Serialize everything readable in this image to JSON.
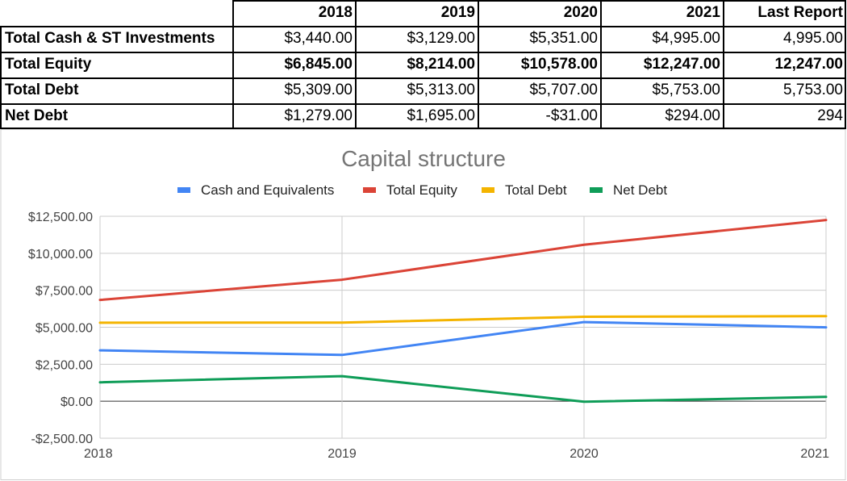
{
  "table": {
    "header": [
      "",
      "2018",
      "2019",
      "2020",
      "2021",
      "Last Report"
    ],
    "rows": [
      {
        "label": "Total Cash & ST Investments",
        "values": [
          "$3,440.00",
          "$3,129.00",
          "$5,351.00",
          "$4,995.00",
          "4,995.00"
        ],
        "bold": false
      },
      {
        "label": "Total Equity",
        "values": [
          "$6,845.00",
          "$8,214.00",
          "$10,578.00",
          "$12,247.00",
          "12,247.00"
        ],
        "bold": true
      },
      {
        "label": "Total Debt",
        "values": [
          "$5,309.00",
          "$5,313.00",
          "$5,707.00",
          "$5,753.00",
          "5,753.00"
        ],
        "bold": false
      },
      {
        "label": "Net Debt",
        "values": [
          "$1,279.00",
          "$1,695.00",
          "-$31.00",
          "$294.00",
          "294"
        ],
        "bold": false
      }
    ]
  },
  "chart_data": {
    "type": "line",
    "title": "Capital structure",
    "x": [
      "2018",
      "2019",
      "2020",
      "2021"
    ],
    "ylim": [
      -2500,
      12500
    ],
    "yticks": [
      -2500,
      0,
      2500,
      5000,
      7500,
      10000,
      12500
    ],
    "ytick_labels": [
      "-$2,500.00",
      "$0.00",
      "$2,500.00",
      "$5,000.00",
      "$7,500.00",
      "$10,000.00",
      "$12,500.00"
    ],
    "grid": true,
    "legend_position": "top",
    "series": [
      {
        "name": "Cash and Equivalents",
        "color": "#4285f4",
        "values": [
          3440,
          3129,
          5351,
          4995
        ]
      },
      {
        "name": "Total Equity",
        "color": "#db4437",
        "values": [
          6845,
          8214,
          10578,
          12247
        ]
      },
      {
        "name": "Total Debt",
        "color": "#f4b400",
        "values": [
          5309,
          5313,
          5707,
          5753
        ]
      },
      {
        "name": "Net Debt",
        "color": "#0f9d58",
        "values": [
          1279,
          1695,
          -31,
          294
        ]
      }
    ]
  }
}
